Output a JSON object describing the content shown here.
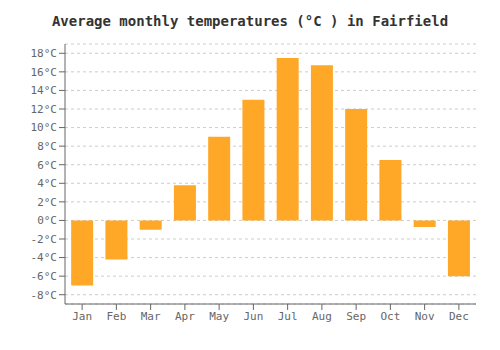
{
  "chart_data": {
    "type": "bar",
    "title": "Average monthly temperatures (°C ) in Fairfield",
    "categories": [
      "Jan",
      "Feb",
      "Mar",
      "Apr",
      "May",
      "Jun",
      "Jul",
      "Aug",
      "Sep",
      "Oct",
      "Nov",
      "Dec"
    ],
    "values": [
      -7.0,
      -4.2,
      -1.0,
      3.8,
      9.0,
      13.0,
      17.5,
      16.7,
      12.0,
      6.5,
      -0.7,
      -6.0
    ],
    "color": "#FFA726",
    "ylim": [
      -9,
      19
    ],
    "yticks": [
      {
        "value": -8,
        "label": "-8°C"
      },
      {
        "value": -6,
        "label": "-6°C"
      },
      {
        "value": -4,
        "label": "-4°C"
      },
      {
        "value": -2,
        "label": "-2°C"
      },
      {
        "value": 0,
        "label": "0°C"
      },
      {
        "value": 2,
        "label": "2°C"
      },
      {
        "value": 4,
        "label": "4°C"
      },
      {
        "value": 6,
        "label": "6°C"
      },
      {
        "value": 8,
        "label": "8°C"
      },
      {
        "value": 10,
        "label": "10°C"
      },
      {
        "value": 12,
        "label": "12°C"
      },
      {
        "value": 14,
        "label": "14°C"
      },
      {
        "value": 16,
        "label": "16°C"
      },
      {
        "value": 18,
        "label": "18°C"
      }
    ],
    "grid": true
  }
}
